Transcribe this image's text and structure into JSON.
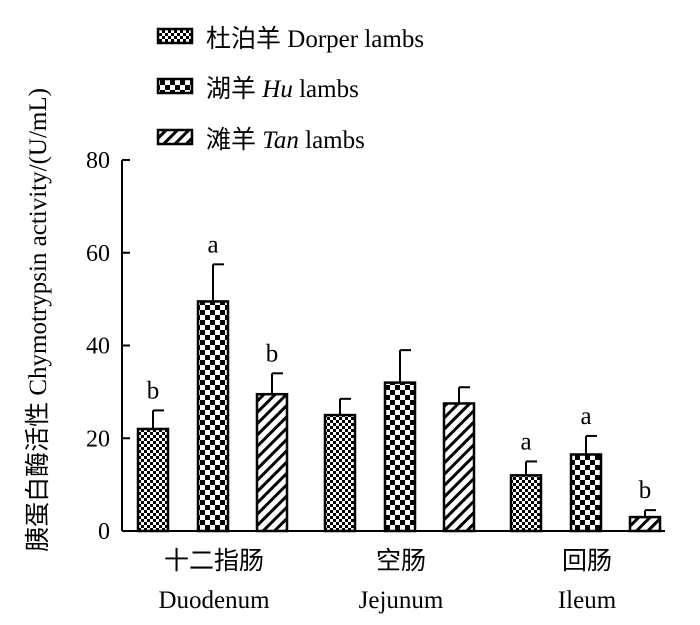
{
  "chart_data": {
    "type": "bar",
    "title": "",
    "ylabel": "胰蛋白酶活性 Chymotrypsin activity/(U/mL)",
    "xlabel": "",
    "ylim": [
      0,
      80
    ],
    "yticks": [
      0,
      20,
      40,
      60,
      80
    ],
    "grid": false,
    "legend_position": "top-left",
    "categories": [
      "十二指肠 Duodenum",
      "空肠 Jejunum",
      "回肠 Ileum"
    ],
    "category_labels": [
      {
        "cn": "十二指肠",
        "en": "Duodenum"
      },
      {
        "cn": "空肠",
        "en": "Jejunum"
      },
      {
        "cn": "回肠",
        "en": "Ileum"
      }
    ],
    "series": [
      {
        "name": "杜泊羊 Dorper lambs",
        "legend_cn": "杜泊羊",
        "legend_en": "Dorper",
        "legend_suffix": "lambs",
        "legend_en_italic": false,
        "pattern": "fine-check",
        "values": [
          22,
          25,
          12
        ],
        "errors": [
          4,
          3.5,
          3
        ],
        "labels": [
          "b",
          "",
          "a"
        ]
      },
      {
        "name": "湖羊 Hu lambs",
        "legend_cn": "湖羊",
        "legend_en": "Hu",
        "legend_suffix": "lambs",
        "legend_en_italic": true,
        "pattern": "coarse-check",
        "values": [
          49.5,
          32,
          16.5
        ],
        "errors": [
          8,
          7,
          4
        ],
        "labels": [
          "a",
          "",
          "a"
        ]
      },
      {
        "name": "滩羊 Tan lambs",
        "legend_cn": "滩羊",
        "legend_en": "Tan",
        "legend_suffix": "lambs",
        "legend_en_italic": true,
        "pattern": "diagonal",
        "values": [
          29.5,
          27.5,
          3
        ],
        "errors": [
          4.5,
          3.5,
          1.5
        ],
        "labels": [
          "b",
          "",
          "b"
        ]
      }
    ]
  }
}
